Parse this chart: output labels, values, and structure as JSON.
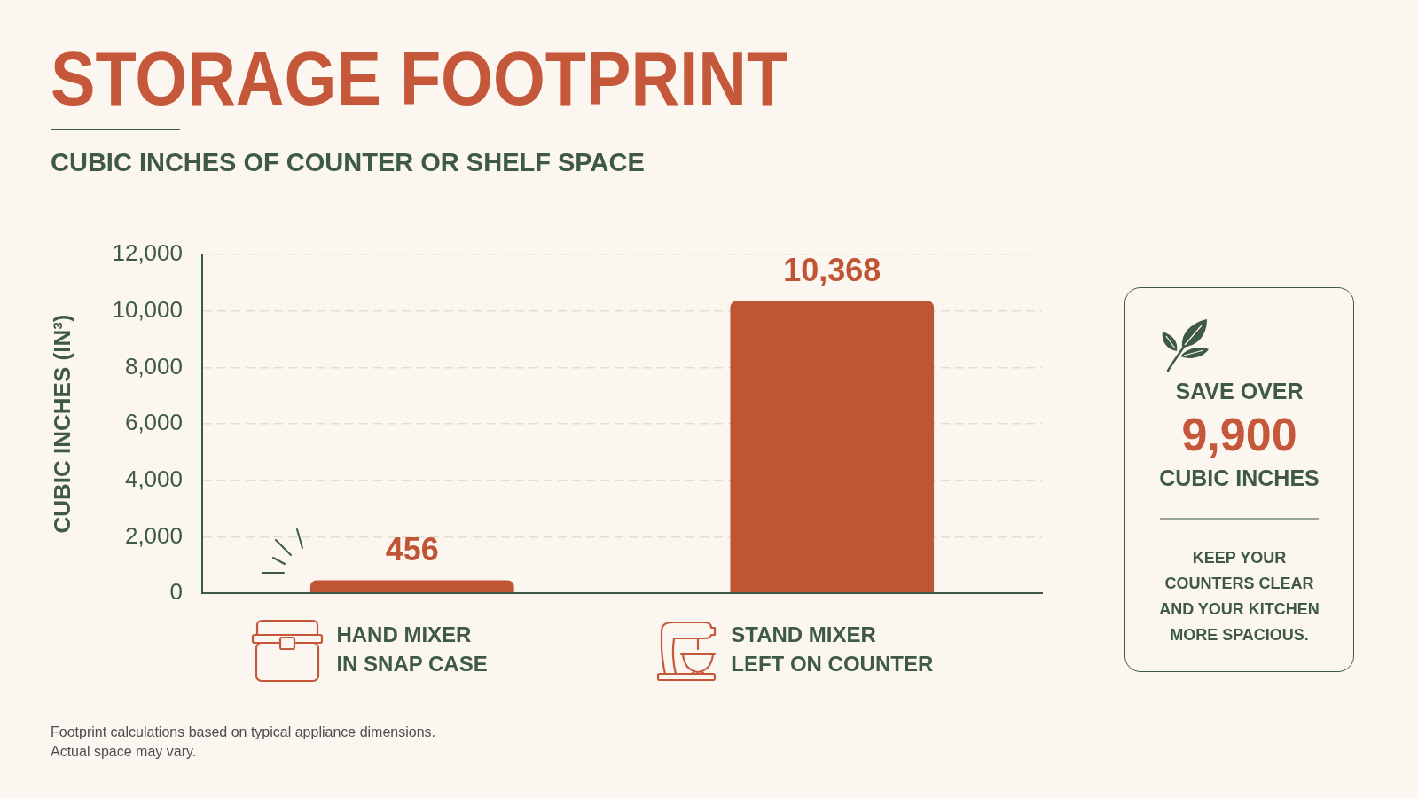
{
  "chart_data": [
    {
      "type": "bar",
      "title": "STORAGE FOOTPRINT",
      "subtitle": "CUBIC INCHES OF COUNTER OR SHELF SPACE",
      "ylabel": "CUBIC INCHES (IN³)",
      "categories": [
        "HAND MIXER IN SNAP CASE",
        "STAND MIXER LEFT ON COUNTER"
      ],
      "values": [
        456,
        10368
      ],
      "value_labels": [
        "456",
        "10,368"
      ],
      "color": "#c05535",
      "ylim": [
        0,
        12000
      ],
      "yticks": [
        0,
        {
          "value": 2000,
          "label": "2,000"
        },
        {
          "value": 4000,
          "label": "4,000"
        },
        {
          "value": 6000,
          "label": "6,000"
        },
        {
          "value": 8000,
          "label": "8,000"
        },
        {
          "value": 10000,
          "label": "10,000"
        },
        {
          "value": 12000,
          "label": "12,000"
        }
      ],
      "grid": "y",
      "annotations": [
        "Footprint calculations based on typical appliance dimensions.",
        "Actual space may vary."
      ]
    },
    {
      "type": "other",
      "annotations": [
        "SAVE OVER",
        "9,900",
        "CUBIC INCHES",
        "KEEP YOUR COUNTERS CLEAR AND YOUR KITCHEN MORE SPACIOUS."
      ]
    }
  ]
}
